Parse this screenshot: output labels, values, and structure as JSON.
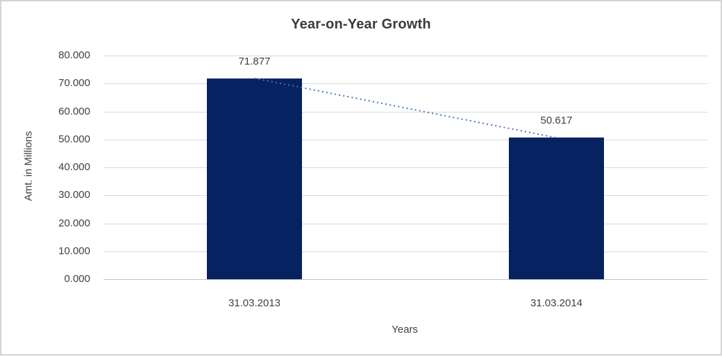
{
  "chart_data": {
    "type": "bar",
    "title": "Year-on-Year Growth",
    "xlabel": "Years",
    "ylabel": "Amt. in Millions",
    "categories": [
      "31.03.2013",
      "31.03.2014"
    ],
    "values": [
      71.877,
      50.617
    ],
    "value_labels": [
      "71.877",
      "50.617"
    ],
    "ytick_labels": [
      "0.000",
      "10.000",
      "20.000",
      "30.000",
      "40.000",
      "50.000",
      "60.000",
      "70.000",
      "80.000"
    ],
    "ylim": [
      0,
      80
    ],
    "grid": true,
    "legend": false,
    "trendline": {
      "style": "dotted",
      "color": "#4472c4",
      "from_value": 71.877,
      "to_value": 50.617
    },
    "colors": {
      "bar": "#062261",
      "gridline": "#d9d9d9",
      "axis_line": "#c3c3c3",
      "text": "#404040",
      "title_text": "#3b3b3b",
      "background": "#ffffff",
      "border": "#d4d4d4"
    }
  }
}
